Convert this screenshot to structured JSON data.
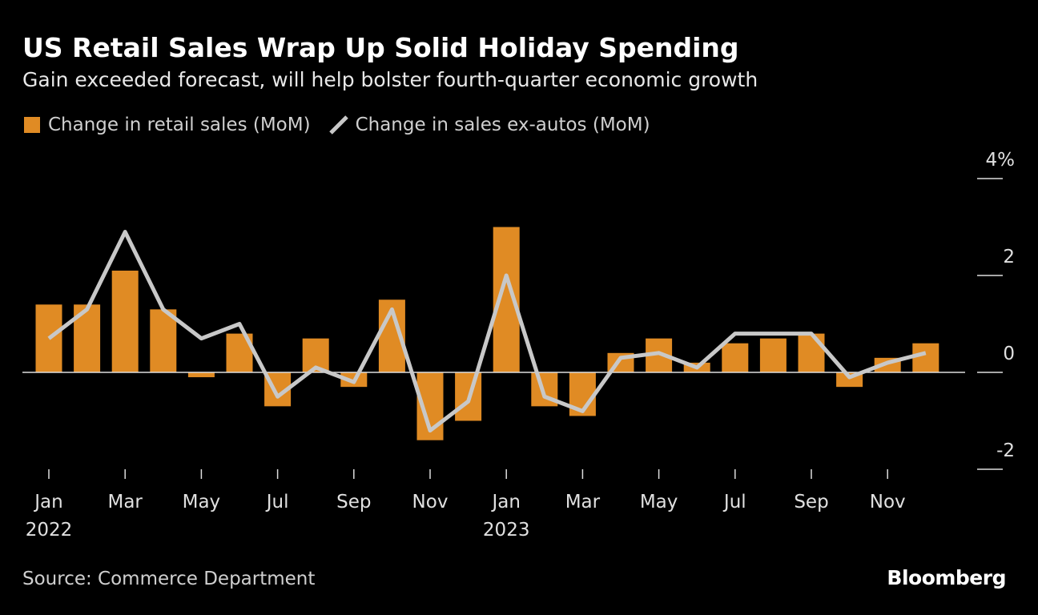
{
  "title": "US Retail Sales Wrap Up Solid Holiday Spending",
  "subtitle": "Gain exceeded forecast, will help bolster fourth-quarter economic growth",
  "source": "Source: Commerce Department",
  "logo": "Bloomberg",
  "colors": {
    "bar": "#e08b24",
    "line": "#c8c8c8",
    "background": "#000000"
  },
  "chart_data": {
    "type": "bar",
    "ylim": [
      -2,
      4
    ],
    "yticks": [
      {
        "v": 4,
        "label": "4%"
      },
      {
        "v": 2,
        "label": "2"
      },
      {
        "v": 0,
        "label": "0"
      },
      {
        "v": -2,
        "label": "-2"
      }
    ],
    "xticks": [
      {
        "i": 0,
        "label": "Jan",
        "year": "2022"
      },
      {
        "i": 2,
        "label": "Mar"
      },
      {
        "i": 4,
        "label": "May"
      },
      {
        "i": 6,
        "label": "Jul"
      },
      {
        "i": 8,
        "label": "Sep"
      },
      {
        "i": 10,
        "label": "Nov"
      },
      {
        "i": 12,
        "label": "Jan",
        "year": "2023"
      },
      {
        "i": 14,
        "label": "Mar"
      },
      {
        "i": 16,
        "label": "May"
      },
      {
        "i": 18,
        "label": "Jul"
      },
      {
        "i": 20,
        "label": "Sep"
      },
      {
        "i": 22,
        "label": "Nov"
      }
    ],
    "categories": [
      "Jan 2022",
      "Feb 2022",
      "Mar 2022",
      "Apr 2022",
      "May 2022",
      "Jun 2022",
      "Jul 2022",
      "Aug 2022",
      "Sep 2022",
      "Oct 2022",
      "Nov 2022",
      "Dec 2022",
      "Jan 2023",
      "Feb 2023",
      "Mar 2023",
      "Apr 2023",
      "May 2023",
      "Jun 2023",
      "Jul 2023",
      "Aug 2023",
      "Sep 2023",
      "Oct 2023",
      "Nov 2023",
      "Dec 2023"
    ],
    "series": [
      {
        "name": "Change in retail sales (MoM)",
        "type": "bar",
        "values": [
          1.4,
          1.4,
          2.1,
          1.3,
          -0.1,
          0.8,
          -0.7,
          0.7,
          -0.3,
          1.5,
          -1.4,
          -1.0,
          3.0,
          -0.7,
          -0.9,
          0.4,
          0.7,
          0.2,
          0.6,
          0.7,
          0.8,
          -0.3,
          0.3,
          0.6
        ]
      },
      {
        "name": "Change in sales ex-autos (MoM)",
        "type": "line",
        "values": [
          0.7,
          1.3,
          2.9,
          1.3,
          0.7,
          1.0,
          -0.5,
          0.1,
          -0.2,
          1.3,
          -1.2,
          -0.6,
          2.0,
          -0.5,
          -0.8,
          0.3,
          0.4,
          0.1,
          0.8,
          0.8,
          0.8,
          -0.1,
          0.2,
          0.4
        ]
      }
    ],
    "grid": false,
    "legend": "top-left"
  }
}
